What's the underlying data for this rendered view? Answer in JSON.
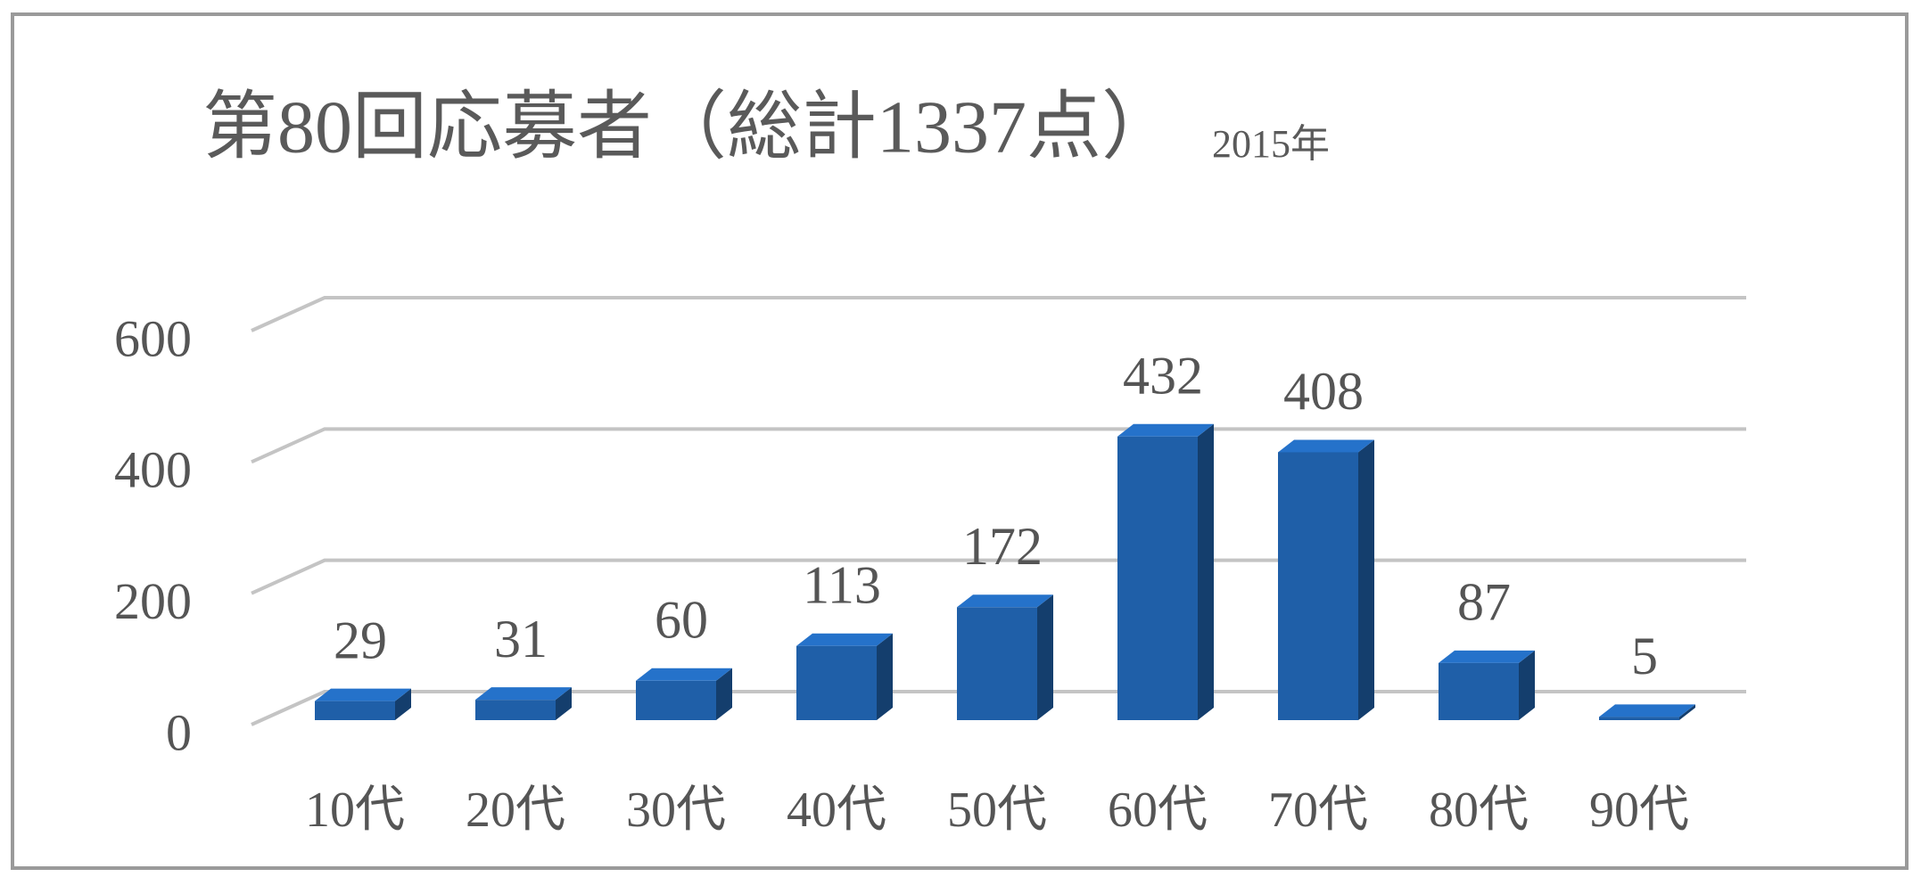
{
  "chart_data": {
    "type": "bar3d",
    "title": "第80回応募者（総計1337点）",
    "subtitle": "2015年",
    "categories": [
      "10代",
      "20代",
      "30代",
      "40代",
      "50代",
      "60代",
      "70代",
      "80代",
      "90代"
    ],
    "values": [
      29,
      31,
      60,
      113,
      172,
      432,
      408,
      87,
      5
    ],
    "color": "#1f5fa8",
    "ylim": [
      0,
      600
    ],
    "yticks": [
      0,
      200,
      400,
      600
    ],
    "grid": true
  }
}
